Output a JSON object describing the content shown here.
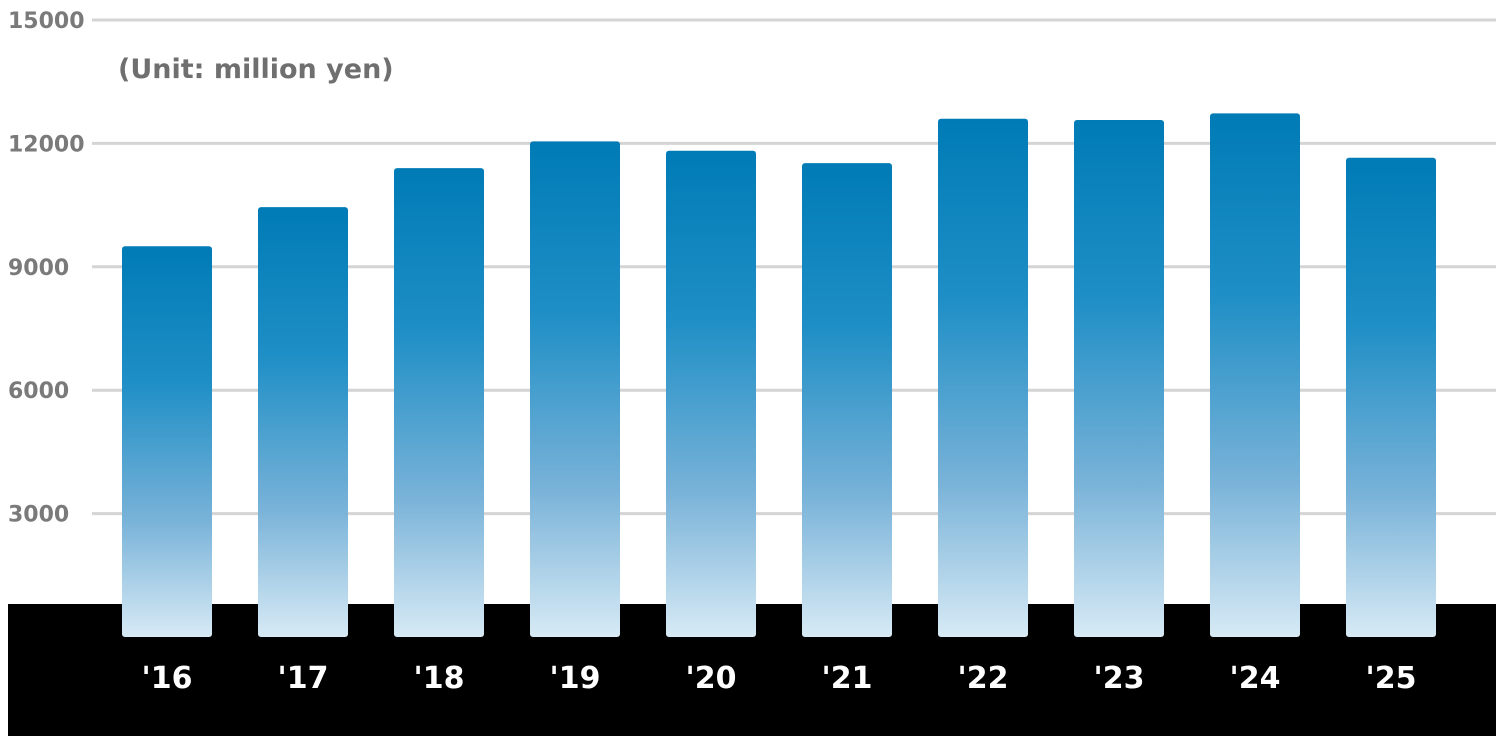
{
  "chart_data": {
    "type": "bar",
    "title": "",
    "unit_label": "(Unit: million yen)",
    "xlabel": "",
    "ylabel": "",
    "categories": [
      "'16",
      "'17",
      "'18",
      "'19",
      "'20",
      "'21",
      "'22",
      "'23",
      "'24",
      "'25"
    ],
    "values": [
      9500,
      10450,
      11400,
      12050,
      11820,
      11520,
      12600,
      12570,
      12730,
      11650
    ],
    "ylim": [
      0,
      15000
    ],
    "yticks": [
      "15000",
      "12000",
      "9000",
      "6000",
      "3000"
    ],
    "grid": true,
    "legend": "none",
    "colors": {
      "bar_top": "#007bb6",
      "bar_bottom": "#d7eaf5",
      "grid": "#d4d4d4",
      "axis_text": "#7a7a7a",
      "band": "#000000",
      "band_text": "#ffffff"
    }
  }
}
